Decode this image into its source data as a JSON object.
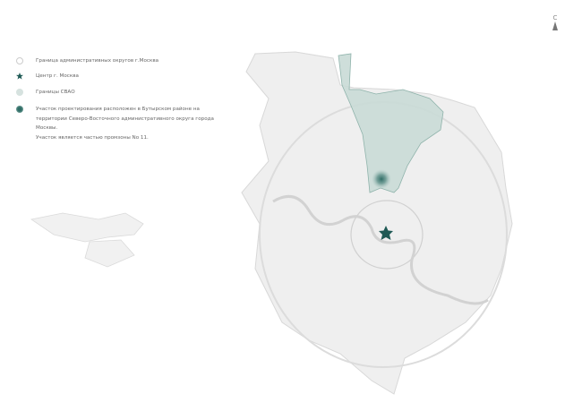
{
  "legend": {
    "items": [
      {
        "icon": "admin-boundary-circle-icon",
        "label": "Граница административных округов г.Москва"
      },
      {
        "icon": "star-icon",
        "label": "Центр г. Москва"
      },
      {
        "icon": "svao-circle-icon",
        "label": "Границы СВАО"
      },
      {
        "icon": "site-dot-icon",
        "label": "Участок проектирования расположен в Бутырском районе на территории Северо-Восточного административного округа города Москвы.",
        "note": "Участок является частью промзоны No 11."
      }
    ]
  },
  "north_arrow": {
    "label": "С"
  },
  "colors": {
    "svao_fill": "#c9dad6",
    "svao_stroke": "#8fb3ab",
    "center_star": "#1f5a55",
    "site": "#2f6d66",
    "city": "#ececec"
  }
}
